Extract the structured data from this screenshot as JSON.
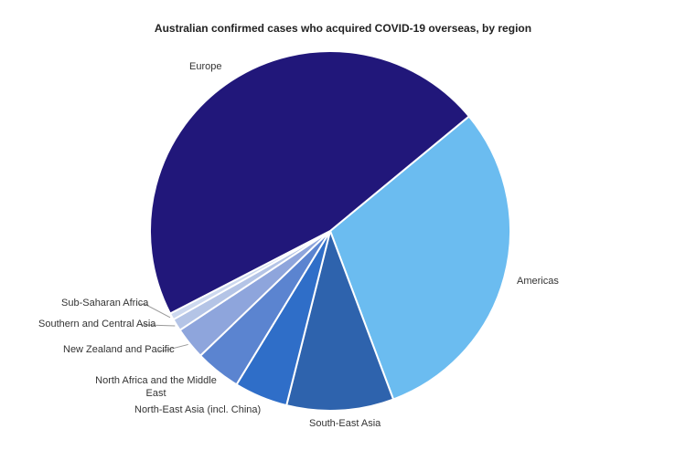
{
  "chart_data": {
    "type": "pie",
    "title": "Australian confirmed cases who acquired COVID-19 overseas, by region",
    "slices": [
      {
        "label": "Americas",
        "value": 30.3,
        "color": "#6bbcf0"
      },
      {
        "label": "South-East Asia",
        "value": 9.6,
        "color": "#2e63ad"
      },
      {
        "label": "North-East Asia (incl. China)",
        "value": 4.8,
        "color": "#2f6ec8"
      },
      {
        "label": "North Africa and the Middle East",
        "value": 4.1,
        "color": "#5b84d0"
      },
      {
        "label": "New Zealand and Pacific",
        "value": 2.9,
        "color": "#8ea5dc"
      },
      {
        "label": "Southern and Central Asia",
        "value": 1.1,
        "color": "#b4c4e6"
      },
      {
        "label": "Sub-Saharan Africa",
        "value": 0.6,
        "color": "#cdd9ef"
      },
      {
        "label": "Europe",
        "value": 46.6,
        "color": "#21177a"
      }
    ],
    "legend": "none (data labels)"
  }
}
